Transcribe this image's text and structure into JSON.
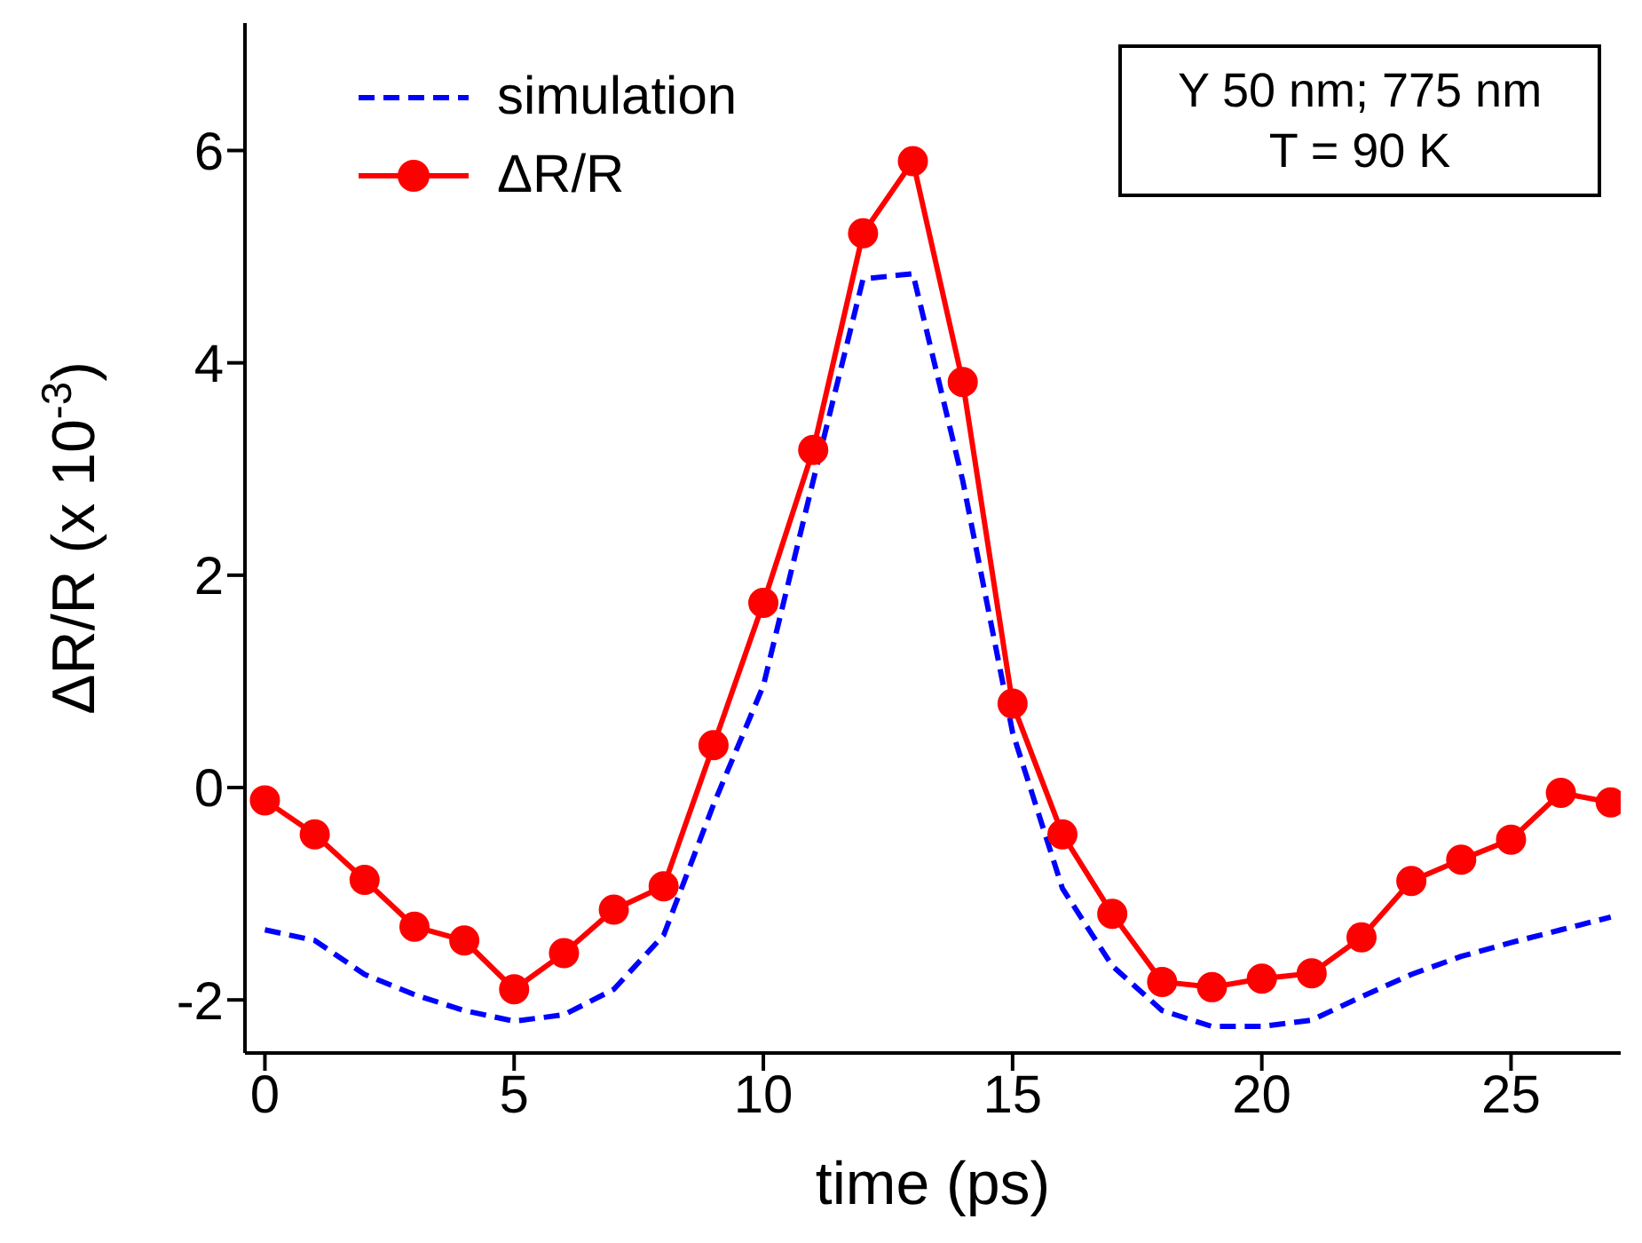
{
  "chart_data": {
    "type": "line",
    "xlabel": "time (ps)",
    "ylabel": "ΔR/R (x 10$^{-3}$)",
    "x": [
      0,
      1,
      2,
      3,
      4,
      5,
      6,
      7,
      8,
      9,
      10,
      11,
      12,
      13,
      14,
      15,
      16,
      17,
      18,
      19,
      20,
      21,
      22,
      23,
      24,
      25,
      26,
      27
    ],
    "series": [
      {
        "name": "simulation",
        "color": "#0000ff",
        "line_style": "dashed",
        "marker": "none",
        "values": [
          -1.34,
          -1.44,
          -1.76,
          -1.95,
          -2.1,
          -2.2,
          -2.14,
          -1.9,
          -1.39,
          -0.16,
          0.96,
          2.89,
          4.79,
          4.84,
          2.89,
          0.52,
          -0.95,
          -1.68,
          -2.1,
          -2.25,
          -2.25,
          -2.19,
          -1.97,
          -1.76,
          -1.59,
          -1.46,
          -1.34,
          -1.22
        ]
      },
      {
        "name": "ΔR/R",
        "color": "#ff0000",
        "line_style": "solid",
        "marker": "circle",
        "values": [
          -0.12,
          -0.44,
          -0.87,
          -1.31,
          -1.44,
          -1.9,
          -1.56,
          -1.15,
          -0.93,
          0.4,
          1.74,
          3.18,
          5.22,
          5.9,
          3.82,
          0.79,
          -0.44,
          -1.19,
          -1.83,
          -1.88,
          -1.8,
          -1.75,
          -1.41,
          -0.88,
          -0.68,
          -0.49,
          -0.05,
          -0.14
        ]
      }
    ],
    "xlim": [
      -0.4,
      27.2
    ],
    "ylim": [
      -2.5,
      7.2
    ],
    "xticks": [
      0,
      5,
      10,
      15,
      20,
      25
    ],
    "yticks": [
      -2,
      0,
      2,
      4,
      6
    ],
    "grid": false,
    "legend": "top left",
    "annotations": [
      "Y 50 nm; 775 nm",
      "T = 90 K"
    ]
  }
}
